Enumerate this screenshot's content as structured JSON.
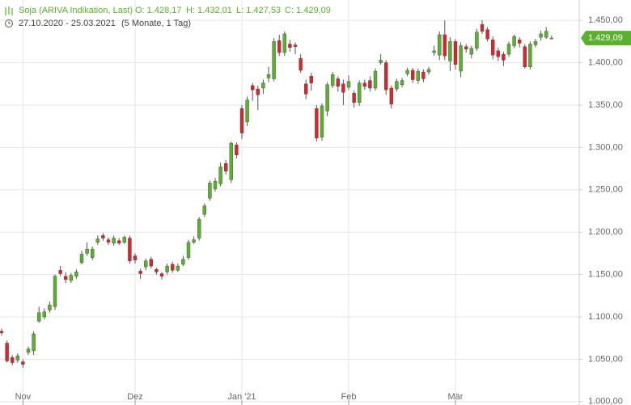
{
  "header": {
    "name": "Soja (ARIVA Indikation, Last)",
    "open": "O: 1.428,17",
    "high": "H: 1.432,01",
    "low": "L: 1.427,53",
    "close": "C: 1.429,09",
    "range": "27.10.2020 - 25.03.2021",
    "period": "(5 Monate, 1 Tag)"
  },
  "chart_data": {
    "type": "candlestick",
    "up_color": "#5bb12f",
    "down_color": "#d9262b",
    "categories": [
      null,
      null,
      null,
      null,
      "Nov",
      null,
      null,
      null,
      null,
      null,
      null,
      null,
      null,
      null,
      null,
      null,
      null,
      null,
      null,
      null,
      null,
      null,
      null,
      null,
      null,
      "Dez",
      null,
      null,
      null,
      null,
      null,
      null,
      null,
      null,
      null,
      null,
      null,
      null,
      null,
      null,
      null,
      null,
      null,
      null,
      null,
      "Jan '21",
      null,
      null,
      null,
      null,
      null,
      null,
      null,
      null,
      null,
      null,
      null,
      null,
      null,
      null,
      null,
      null,
      null,
      null,
      null,
      "Feb",
      null,
      null,
      null,
      null,
      null,
      null,
      null,
      null,
      null,
      null,
      null,
      null,
      null,
      null,
      null,
      null,
      null,
      null,
      null,
      "Mär",
      null,
      null,
      null,
      null,
      null,
      null,
      null,
      null,
      null,
      null,
      null,
      null,
      null,
      null,
      null,
      null,
      null,
      null
    ],
    "open": [
      1083,
      1069,
      1052,
      1049,
      1047,
      1058,
      1060,
      1095,
      1100,
      1108,
      1112,
      1155,
      1148,
      1143,
      1148,
      1164,
      1175,
      1170,
      1188,
      1196,
      1191,
      1187,
      1190,
      1188,
      1193,
      1172,
      1154,
      1159,
      1168,
      1156,
      1151,
      1153,
      1162,
      1155,
      1162,
      1170,
      1188,
      1193,
      1221,
      1240,
      1251,
      1257,
      1281,
      1262,
      1303,
      1346,
      1330,
      1373,
      1369,
      1370,
      1382,
      1381,
      1426,
      1412,
      1422,
      1421,
      1405,
      1375,
      1384,
      1346,
      1312,
      1343,
      1373,
      1381,
      1375,
      1371,
      1364,
      1353,
      1376,
      1379,
      1370,
      1400,
      1400,
      1370,
      1369,
      1374,
      1387,
      1391,
      1379,
      1389,
      1389,
      1412,
      1409,
      1433,
      1402,
      1425,
      1390,
      1419,
      1410,
      1417,
      1445,
      1439,
      1427,
      1414,
      1410,
      1410,
      1420,
      1427,
      1419,
      1395,
      1421,
      1430,
      1430,
      1428.17
    ],
    "high": [
      1086,
      1072,
      1055,
      1057,
      1050,
      1065,
      1083,
      1112,
      1110,
      1118,
      1150,
      1160,
      1153,
      1152,
      1156,
      1178,
      1188,
      1183,
      1196,
      1199,
      1194,
      1196,
      1193,
      1196,
      1196,
      1175,
      1157,
      1169,
      1171,
      1158,
      1153,
      1163,
      1165,
      1163,
      1172,
      1191,
      1195,
      1218,
      1234,
      1261,
      1264,
      1282,
      1285,
      1307,
      1306,
      1350,
      1360,
      1376,
      1373,
      1380,
      1395,
      1429,
      1433,
      1437,
      1427,
      1424,
      1410,
      1380,
      1388,
      1350,
      1352,
      1377,
      1389,
      1384,
      1380,
      1385,
      1367,
      1379,
      1380,
      1384,
      1393,
      1410,
      1403,
      1373,
      1381,
      1382,
      1394,
      1394,
      1393,
      1392,
      1395,
      1420,
      1437,
      1450,
      1430,
      1428,
      1424,
      1422,
      1420,
      1440,
      1450,
      1442,
      1431,
      1418,
      1413,
      1425,
      1433,
      1430,
      1422,
      1425,
      1428,
      1438,
      1442,
      1432.01
    ],
    "low": [
      1078,
      1046,
      1043,
      1046,
      1040,
      1055,
      1055,
      1093,
      1097,
      1105,
      1108,
      1148,
      1140,
      1140,
      1145,
      1162,
      1172,
      1167,
      1185,
      1190,
      1185,
      1184,
      1185,
      1186,
      1163,
      1163,
      1145,
      1155,
      1157,
      1150,
      1144,
      1150,
      1152,
      1153,
      1160,
      1167,
      1186,
      1190,
      1218,
      1237,
      1248,
      1254,
      1268,
      1258,
      1287,
      1310,
      1325,
      1355,
      1344,
      1363,
      1377,
      1378,
      1408,
      1408,
      1413,
      1410,
      1388,
      1357,
      1367,
      1307,
      1308,
      1337,
      1370,
      1366,
      1350,
      1368,
      1347,
      1349,
      1368,
      1366,
      1367,
      1398,
      1362,
      1346,
      1366,
      1371,
      1384,
      1376,
      1375,
      1377,
      1386,
      1408,
      1403,
      1403,
      1390,
      1392,
      1383,
      1412,
      1405,
      1414,
      1434,
      1425,
      1404,
      1402,
      1396,
      1407,
      1417,
      1418,
      1393,
      1392,
      1418,
      1426,
      1428,
      1427.53
    ],
    "close": [
      1081,
      1048,
      1046,
      1054,
      1044,
      1062,
      1080,
      1105,
      1106,
      1114,
      1148,
      1151,
      1144,
      1149,
      1153,
      1174,
      1180,
      1180,
      1192,
      1193,
      1188,
      1193,
      1187,
      1194,
      1166,
      1167,
      1151,
      1166,
      1160,
      1153,
      1148,
      1160,
      1155,
      1160,
      1168,
      1188,
      1191,
      1215,
      1231,
      1258,
      1260,
      1277,
      1272,
      1305,
      1291,
      1317,
      1356,
      1368,
      1362,
      1376,
      1386,
      1425,
      1412,
      1434,
      1418,
      1419,
      1391,
      1363,
      1376,
      1311,
      1349,
      1374,
      1386,
      1372,
      1365,
      1378,
      1353,
      1376,
      1372,
      1370,
      1390,
      1403,
      1368,
      1351,
      1378,
      1379,
      1391,
      1380,
      1390,
      1381,
      1392,
      1414,
      1433,
      1408,
      1425,
      1398,
      1420,
      1416,
      1417,
      1436,
      1437,
      1428,
      1409,
      1407,
      1403,
      1422,
      1431,
      1423,
      1395,
      1422,
      1425,
      1434,
      1437,
      1429.09
    ],
    "last": {
      "value": 1429.09,
      "label": "1.429,09"
    },
    "ylim": [
      996,
      1474
    ],
    "yticks": [
      {
        "value": 1000,
        "label": "1.000,00"
      },
      {
        "value": 1050,
        "label": "1.050,00"
      },
      {
        "value": 1100,
        "label": "1.100,00"
      },
      {
        "value": 1150,
        "label": "1.150,00"
      },
      {
        "value": 1200,
        "label": "1.200,00"
      },
      {
        "value": 1250,
        "label": "1.250,00"
      },
      {
        "value": 1300,
        "label": "1.300,00"
      },
      {
        "value": 1350,
        "label": "1.350,00"
      },
      {
        "value": 1400,
        "label": "1.400,00"
      },
      {
        "value": 1450,
        "label": "1.450,00"
      }
    ],
    "grid": true
  }
}
